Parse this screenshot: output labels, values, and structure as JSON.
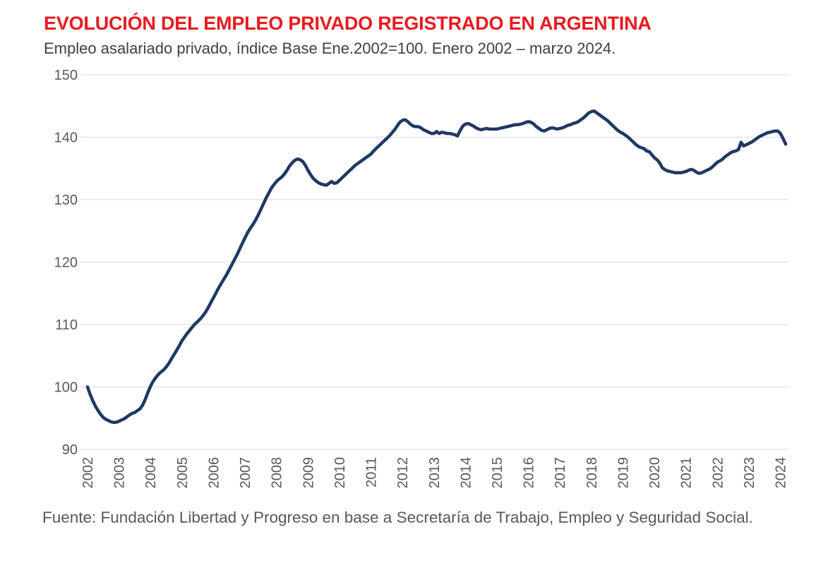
{
  "header": {
    "title": "EVOLUCIÓN DEL EMPLEO PRIVADO REGISTRADO EN ARGENTINA",
    "subtitle": "Empleo asalariado privado, índice Base Ene.2002=100. Enero 2002 – marzo 2024."
  },
  "footer": {
    "source": "Fuente: Fundación Libertad y Progreso en base a Secretaría de Trabajo, Empleo y Seguridad Social."
  },
  "colors": {
    "title_red": "#e8191f",
    "line_navy": "#1f3864",
    "axis_text_gray": "#595959",
    "gridline_gray": "#d9d9d9"
  },
  "chart_data": {
    "type": "line",
    "title": "EVOLUCIÓN DEL EMPLEO PRIVADO REGISTRADO EN ARGENTINA",
    "subtitle": "Empleo asalariado privado, índice Base Ene.2002=100. Enero 2002 – marzo 2024.",
    "xlabel": "",
    "ylabel": "",
    "ylim": [
      90,
      150
    ],
    "y_ticks": [
      90,
      100,
      110,
      120,
      130,
      140,
      150
    ],
    "x_tick_labels": [
      "2002",
      "2003",
      "2004",
      "2005",
      "2006",
      "2007",
      "2008",
      "2009",
      "2010",
      "2011",
      "2012",
      "2013",
      "2014",
      "2015",
      "2016",
      "2017",
      "2018",
      "2019",
      "2020",
      "2021",
      "2022",
      "2023",
      "2024"
    ],
    "x_start_month": "2002-01",
    "x_end_month": "2024-03",
    "grid": "horizontal-only",
    "legend": "none",
    "series": [
      {
        "name": "Empleo asalariado privado, índice Base Ene.2002=100",
        "monthly_values": [
          100,
          98.8,
          97.8,
          96.9,
          96.2,
          95.6,
          95.1,
          94.8,
          94.6,
          94.4,
          94.3,
          94.35,
          94.5,
          94.7,
          94.9,
          95.2,
          95.5,
          95.75,
          95.9,
          96.2,
          96.5,
          97.1,
          98,
          99.1,
          100.1,
          100.9,
          101.5,
          102,
          102.4,
          102.7,
          103.2,
          103.8,
          104.5,
          105.2,
          105.9,
          106.6,
          107.4,
          108,
          108.6,
          109.1,
          109.6,
          110.1,
          110.5,
          110.9,
          111.4,
          112,
          112.7,
          113.5,
          114.3,
          115.1,
          115.9,
          116.6,
          117.3,
          118,
          118.8,
          119.6,
          120.4,
          121.2,
          122.1,
          123,
          123.9,
          124.7,
          125.4,
          126,
          126.7,
          127.5,
          128.4,
          129.3,
          130.2,
          131,
          131.8,
          132.4,
          132.9,
          133.3,
          133.6,
          134.1,
          134.7,
          135.4,
          135.9,
          136.3,
          136.5,
          136.4,
          136.1,
          135.5,
          134.7,
          134,
          133.4,
          133,
          132.7,
          132.5,
          132.4,
          132.3,
          132.6,
          132.9,
          132.6,
          132.7,
          133.1,
          133.5,
          133.9,
          134.3,
          134.7,
          135.1,
          135.5,
          135.8,
          136.1,
          136.4,
          136.7,
          137,
          137.3,
          137.8,
          138.2,
          138.6,
          139,
          139.4,
          139.8,
          140.2,
          140.7,
          141.2,
          141.8,
          142.4,
          142.7,
          142.8,
          142.5,
          142.1,
          141.8,
          141.7,
          141.7,
          141.5,
          141.2,
          141,
          140.8,
          140.6,
          140.6,
          140.9,
          140.6,
          140.8,
          140.7,
          140.6,
          140.6,
          140.5,
          140.4,
          140.2,
          141.1,
          141.8,
          142.1,
          142.2,
          142,
          141.8,
          141.5,
          141.3,
          141.2,
          141.3,
          141.4,
          141.3,
          141.3,
          141.3,
          141.3,
          141.4,
          141.5,
          141.6,
          141.7,
          141.8,
          141.9,
          142,
          142,
          142.1,
          142.2,
          142.4,
          142.5,
          142.4,
          142.1,
          141.7,
          141.4,
          141.1,
          141,
          141.2,
          141.4,
          141.5,
          141.4,
          141.3,
          141.4,
          141.5,
          141.7,
          141.9,
          142,
          142.2,
          142.3,
          142.5,
          142.8,
          143.1,
          143.5,
          143.9,
          144.1,
          144.2,
          143.9,
          143.6,
          143.3,
          143,
          142.7,
          142.3,
          141.9,
          141.5,
          141.1,
          140.8,
          140.6,
          140.3,
          140,
          139.6,
          139.2,
          138.8,
          138.5,
          138.3,
          138.2,
          137.8,
          137.7,
          137.2,
          136.7,
          136.4,
          135.9,
          135.1,
          134.8,
          134.6,
          134.5,
          134.4,
          134.3,
          134.3,
          134.3,
          134.4,
          134.5,
          134.7,
          134.85,
          134.7,
          134.4,
          134.2,
          134.3,
          134.5,
          134.7,
          134.9,
          135.2,
          135.6,
          136,
          136.2,
          136.5,
          136.9,
          137.2,
          137.5,
          137.7,
          137.8,
          138,
          139.2,
          138.6,
          138.8,
          139,
          139.2,
          139.5,
          139.8,
          140.1,
          140.3,
          140.5,
          140.7,
          140.8,
          140.9,
          141,
          141,
          140.6,
          139.8,
          138.9
        ]
      }
    ]
  }
}
